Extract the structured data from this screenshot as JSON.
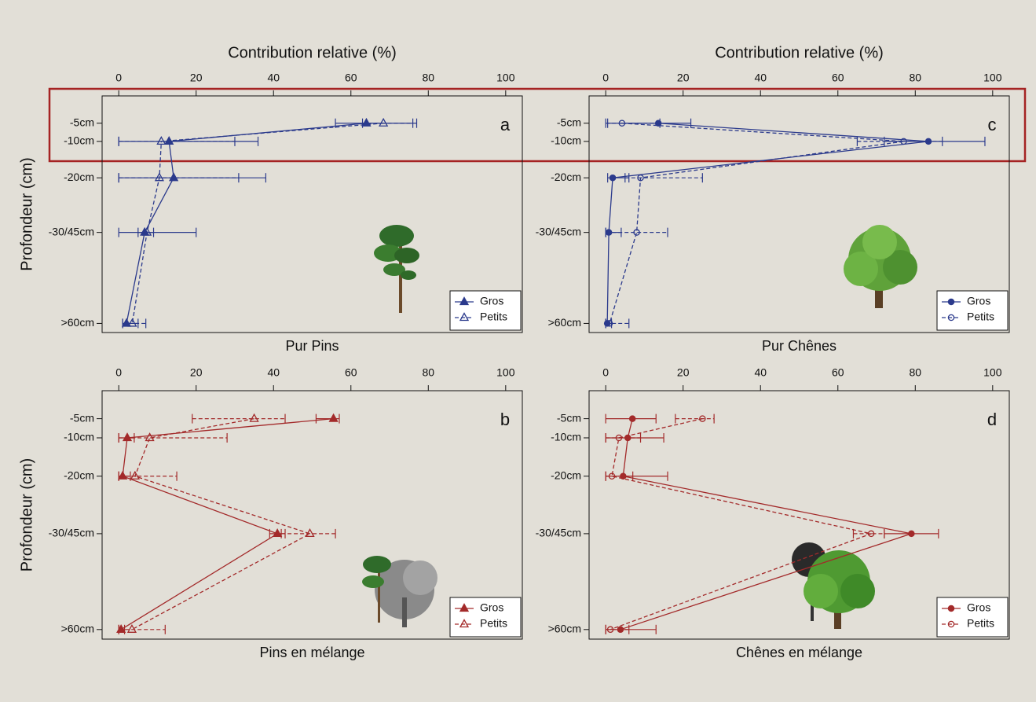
{
  "chart_data": [
    {
      "type": "line",
      "letter": "a",
      "title": "Pur Pins",
      "xlabel": "Contribution relative (%)",
      "ylabel": "Profondeur (cm)",
      "xlim": [
        -4.3,
        104.3
      ],
      "xticks": [
        0,
        20,
        40,
        60,
        80,
        100
      ],
      "ylim": [
        -2.5,
        62.5
      ],
      "yinvert": true,
      "yticks": [
        {
          "value": 5,
          "label": "-5cm"
        },
        {
          "value": 10,
          "label": "-10cm"
        },
        {
          "value": 20,
          "label": "-20cm"
        },
        {
          "value": 35,
          "label": "-30/45cm"
        },
        {
          "value": 60,
          "label": ">60cm"
        }
      ],
      "legend": "lower right",
      "series": [
        {
          "name": "Gros",
          "color": "#2b3a8c",
          "marker": "triangle",
          "filled": true,
          "dashed": false,
          "values": [
            64,
            13,
            14.2,
            6.7,
            2
          ],
          "lower": [
            56,
            0,
            0,
            0,
            1
          ],
          "upper": [
            76,
            36,
            38,
            20,
            5
          ]
        },
        {
          "name": "Petits",
          "color": "#2b3a8c",
          "marker": "triangle",
          "filled": false,
          "dashed": true,
          "values": [
            68.4,
            11,
            10.5,
            7.3,
            3.5
          ],
          "lower": [
            63,
            0,
            0,
            5,
            1
          ],
          "upper": [
            77,
            30,
            31,
            9,
            7
          ]
        }
      ]
    },
    {
      "type": "line",
      "letter": "c",
      "title": "Pur Chênes",
      "xlabel": "Contribution relative (%)",
      "xlim": [
        -4.3,
        104.3
      ],
      "xticks": [
        0,
        20,
        40,
        60,
        80,
        100
      ],
      "ylim": [
        -2.5,
        62.5
      ],
      "yinvert": true,
      "yticks": [
        {
          "value": 5,
          "label": "-5cm"
        },
        {
          "value": 10,
          "label": "-10cm"
        },
        {
          "value": 20,
          "label": "-20cm"
        },
        {
          "value": 35,
          "label": "-30/45cm"
        },
        {
          "value": 60,
          "label": ">60cm"
        }
      ],
      "legend": "lower right",
      "series": [
        {
          "name": "Gros",
          "color": "#2b3a8c",
          "marker": "circle",
          "filled": true,
          "dashed": false,
          "values": [
            13.6,
            83.4,
            1.8,
            0.8,
            0.4
          ],
          "lower": [
            0.5,
            72,
            0.5,
            0,
            0
          ],
          "upper": [
            22,
            98,
            6,
            4,
            1.5
          ]
        },
        {
          "name": "Petits",
          "color": "#2b3a8c",
          "marker": "circle",
          "filled": false,
          "dashed": true,
          "values": [
            4.2,
            77,
            9,
            8,
            1
          ],
          "lower": [
            0,
            65,
            5,
            0,
            0
          ],
          "upper": [
            14,
            87,
            25,
            16,
            6
          ]
        }
      ]
    },
    {
      "type": "line",
      "letter": "b",
      "title": "Pins en mélange",
      "ylabel": "Profondeur (cm)",
      "xlim": [
        -4.3,
        104.3
      ],
      "xticks": [
        0,
        20,
        40,
        60,
        80,
        100
      ],
      "ylim": [
        -2.3,
        62.5
      ],
      "yinvert": true,
      "yticks": [
        {
          "value": 5,
          "label": "-5cm"
        },
        {
          "value": 10,
          "label": "-10cm"
        },
        {
          "value": 20,
          "label": "-20cm"
        },
        {
          "value": 35,
          "label": "-30/45cm"
        },
        {
          "value": 60,
          "label": ">60cm"
        }
      ],
      "legend": "lower right",
      "series": [
        {
          "name": "Gros",
          "color": "#a32a2a",
          "marker": "triangle",
          "filled": true,
          "dashed": false,
          "values": [
            55.5,
            2.2,
            1,
            41,
            0.6
          ],
          "lower": [
            51,
            0,
            0,
            39,
            0
          ],
          "upper": [
            57,
            4,
            3,
            43,
            1.5
          ]
        },
        {
          "name": "Petits",
          "color": "#a32a2a",
          "marker": "triangle",
          "filled": false,
          "dashed": true,
          "values": [
            35,
            8,
            4.2,
            49.4,
            3.4
          ],
          "lower": [
            19,
            0,
            0,
            42,
            0
          ],
          "upper": [
            43,
            28,
            15,
            56,
            12
          ]
        }
      ]
    },
    {
      "type": "line",
      "letter": "d",
      "title": "Chênes en mélange",
      "xlim": [
        -4.3,
        104.3
      ],
      "xticks": [
        0,
        20,
        40,
        60,
        80,
        100
      ],
      "ylim": [
        -2.3,
        62.5
      ],
      "yinvert": true,
      "yticks": [
        {
          "value": 5,
          "label": "-5cm"
        },
        {
          "value": 10,
          "label": "-10cm"
        },
        {
          "value": 20,
          "label": "-20cm"
        },
        {
          "value": 35,
          "label": "-30/45cm"
        },
        {
          "value": 60,
          "label": ">60cm"
        }
      ],
      "legend": "lower right",
      "series": [
        {
          "name": "Gros",
          "color": "#a32a2a",
          "marker": "circle",
          "filled": true,
          "dashed": false,
          "values": [
            6.9,
            5.7,
            4.5,
            79,
            3.8
          ],
          "lower": [
            0,
            0,
            0,
            72,
            0
          ],
          "upper": [
            13,
            15,
            16,
            86,
            13
          ]
        },
        {
          "name": "Petits",
          "color": "#a32a2a",
          "marker": "circle",
          "filled": false,
          "dashed": true,
          "values": [
            25,
            3.4,
            1.6,
            68.6,
            1.2
          ],
          "lower": [
            18,
            0,
            0,
            64,
            0
          ],
          "upper": [
            28,
            9,
            7,
            72,
            6
          ]
        }
      ]
    }
  ]
}
